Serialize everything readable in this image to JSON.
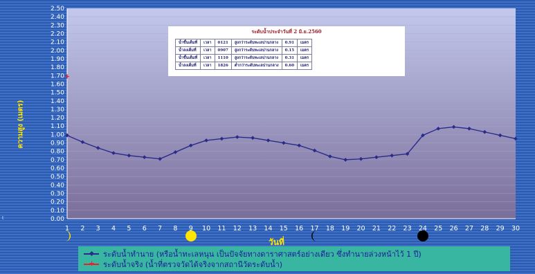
{
  "chart_data": {
    "type": "line",
    "title": "",
    "xlabel": "วันที่",
    "ylabel": "ความสูง (เมตร)",
    "x": [
      1,
      2,
      3,
      4,
      5,
      6,
      7,
      8,
      9,
      10,
      11,
      12,
      13,
      14,
      15,
      16,
      17,
      18,
      19,
      20,
      21,
      22,
      23,
      24,
      25,
      26,
      27,
      28,
      29,
      30
    ],
    "xlim": [
      1,
      30
    ],
    "ylim": [
      0.0,
      2.5
    ],
    "ytick_step": 0.1,
    "yticks": [
      "0.00",
      "0.10",
      "0.20",
      "0.30",
      "0.40",
      "0.50",
      "0.60",
      "0.70",
      "0.80",
      "0.90",
      "1.00",
      "1.10",
      "1.20",
      "1.30",
      "1.40",
      "1.50",
      "1.60",
      "1.70",
      "1.80",
      "1.90",
      "2.00",
      "2.10",
      "2.20",
      "2.30",
      "2.40",
      "2.50"
    ],
    "grid": true,
    "legend_position": "bottom",
    "series": [
      {
        "name": "ระดับน้ำทำนาย (หรือน้ำทะเลหนุน เป็นปัจจัยทางดาราศาสตร์อย่างเดียว ซึ่งทำนายล่วงหน้าไว้ 1 ปี)",
        "color": "#2a2a8a",
        "x": [
          1,
          2,
          3,
          4,
          5,
          6,
          7,
          8,
          9,
          10,
          11,
          12,
          13,
          14,
          15,
          16,
          17,
          18,
          19,
          20,
          21,
          22,
          23,
          24,
          25,
          26,
          27,
          28,
          29,
          30
        ],
        "values": [
          0.99,
          0.91,
          0.84,
          0.78,
          0.75,
          0.73,
          0.71,
          0.79,
          0.87,
          0.93,
          0.95,
          0.97,
          0.96,
          0.93,
          0.9,
          0.87,
          0.81,
          0.74,
          0.7,
          0.71,
          0.73,
          0.75,
          0.77,
          0.99,
          1.07,
          1.09,
          1.07,
          1.03,
          0.99,
          0.95
        ]
      },
      {
        "name": "ระดับน้ำจริง (น้ำที่ตรวจวัดได้จริงจากสถานีวัดระดับน้ำ)",
        "color": "#e8202a",
        "x": [
          1
        ],
        "values": [
          1.69
        ]
      }
    ],
    "moon_phases": [
      {
        "day": 1,
        "phase": "waxing-crescent"
      },
      {
        "day": 9,
        "phase": "full"
      },
      {
        "day": 17,
        "phase": "waning-crescent"
      },
      {
        "day": 24,
        "phase": "new"
      }
    ]
  },
  "table": {
    "title": "ระดับน้ำประจำวันที่ 2 มิ.ย.2560",
    "rows": [
      [
        "น้ำขึ้นเต็มที่",
        "เวลา",
        "0121",
        "สูงกว่าระดับทะเลปานกลาง",
        "0.91",
        "เมตร"
      ],
      [
        "น้ำลงเต็มที่",
        "เวลา",
        "0907",
        "สูงกว่าระดับทะเลปานกลาง",
        "0.15",
        "เมตร"
      ],
      [
        "น้ำขึ้นเต็มที่",
        "เวลา",
        "1110",
        "สูงกว่าระดับทะเลปานกลาง",
        "0.31",
        "เมตร"
      ],
      [
        "น้ำลงเต็มที่",
        "เวลา",
        "1826",
        "ต่ำกว่าระดับทะเลปานกลาง",
        "0.60",
        "เมตร"
      ]
    ]
  },
  "side_note": "t",
  "colors": {
    "plot_bg_top": "#c3c8ec",
    "plot_bg_bottom": "#7a6e9a",
    "axis_text": "#ffffff",
    "label_color": "#ffe600",
    "legend_bg": "#39b6a2",
    "moon": "#ffe600",
    "new_moon": "#000000"
  }
}
